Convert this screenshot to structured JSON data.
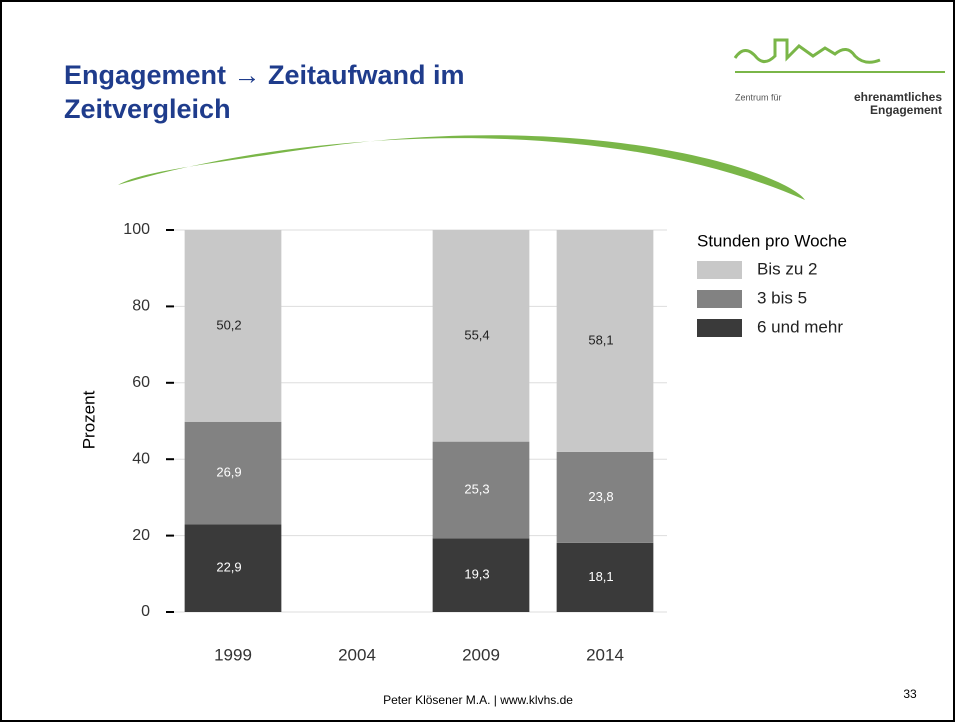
{
  "title": "Engagement → Zeitaufwand im Zeitvergleich",
  "logo": {
    "line1": "Zentrum für",
    "line2": "ehrenamtliches",
    "line3": "Engagement"
  },
  "footer": "Peter Klösener M.A. | www.klvhs.de",
  "page_number": "33",
  "chart_data": {
    "type": "stacked_bar",
    "categories": [
      "1999",
      "2004",
      "2009",
      "2014"
    ],
    "y_label": "Prozent",
    "legend_title": "Stunden pro Woche",
    "ylim": [
      0,
      100
    ],
    "yticks": [
      0,
      20,
      40,
      60,
      80,
      100
    ],
    "grid": true,
    "series": [
      {
        "name": "6 und mehr",
        "color": "#3a3a3a",
        "values": [
          22.9,
          null,
          19.3,
          18.1
        ],
        "value_labels": [
          "22,9",
          null,
          "19,3",
          "18,1"
        ]
      },
      {
        "name": "3 bis 5",
        "color": "#828282",
        "values": [
          26.9,
          null,
          25.3,
          23.8
        ],
        "value_labels": [
          "26,9",
          null,
          "25,3",
          "23,8"
        ]
      },
      {
        "name": "Bis zu 2",
        "color": "#c8c8c8",
        "values": [
          50.2,
          null,
          55.4,
          58.1
        ],
        "value_labels": [
          "50,2",
          null,
          "55,4",
          "58,1"
        ]
      }
    ]
  }
}
